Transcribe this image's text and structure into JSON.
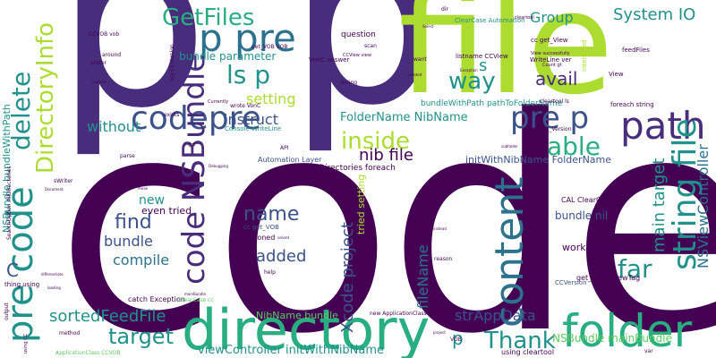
{
  "palette": {
    "deep_purple": "#440154",
    "indigo": "#472d7b",
    "blue": "#3b528b",
    "steel_blue": "#2c728e",
    "teal": "#21918c",
    "sea_green": "#28ae80",
    "green": "#5ec962",
    "yellow_green": "#addc30",
    "yellow": "#fde725"
  },
  "words": {
    "code_big": "code",
    "p_top_left": "p",
    "p_top_mid": "p",
    "file_big": "file",
    "directory": "directory",
    "folder": "folder",
    "p_pre": "p pre",
    "codepre": "codepre",
    "code_nsbundle": "code NSBundle",
    "getfiles": "GetFiles",
    "path": "path",
    "pre_p": "pre p",
    "content": "content",
    "string_file": "string file",
    "pre_code": "pre code",
    "delete": "delete",
    "directoryinfo": "DirectoryInfo",
    "inside": "inside",
    "able": "able",
    "ls_p": "ls p",
    "way": "way",
    "s": "s",
    "avail": "avail",
    "system_io": "System IO",
    "group": "Group",
    "name": "name",
    "find": "find",
    "target": "target",
    "thank": "Thank",
    "far": "far",
    "c": "C",
    "sortedfeedfile": "sortedFeedFile",
    "strappdata": "strAppData",
    "xcode_project": "Xcode project",
    "filename": "fileName",
    "main_target": "main target",
    "nsviewcontroller": "NSViewController",
    "nib_file": "nib file",
    "folder_nibname": "FolderName NibName",
    "instruct": "instruct",
    "setting": "setting",
    "without": "without",
    "bundle_parameter": "bundle parameter",
    "bundle": "bundle",
    "compile": "compile",
    "added": "added",
    "new": "new",
    "even_tried": "even tried",
    "nsbundle_mainbundle": "NSBundle mainBundle",
    "bundle_nil": "bundle nil",
    "work_neither": "work Neither",
    "init_nib_folder": "initWithNibName FolderName",
    "viewcontroller_init": "viewController initWithNibName",
    "nibname_bundle": "NibName bundle",
    "p_small": "p",
    "nsbundle_bundlewithpath": "NSBundle bundleWithPath",
    "tried_setting": "tried setting",
    "alldirectories": "AllDirectories foreach",
    "bundlewithpath": "bundleWithPath pathToFolderName",
    "automation_layer": "Automation Layer",
    "cc_get_vob": "cc get_VOB",
    "versioned": "versioned",
    "catch_exception": "catch Exception",
    "cal_clearcase": "CAL ClearCase",
    "get_view_viewtag": "get_View ViewTag",
    "ccversion": "CCVersion",
    "using_cleartool": "using cleartool",
    "clearcase_automation": "ClearCase Automation",
    "cc_get_view": "cc get_View",
    "listname_ccview": "listname CCView",
    "question": "question",
    "wrote_vonc": "wrote VonC",
    "vonc_answer": "VonC answer",
    "console_writeline": "Console WriteLine",
    "foreach_string": "foreach string",
    "cleartool_ls": "cleartool ls",
    "cc_get_version": "cc get_Version",
    "writeline_ver": "WriteLine ver",
    "feedfiles": "feedFiles",
    "view": "View",
    "interested": "interested",
    "ccvob_vob": "CCVOB vob",
    "around": "around",
    "prefer": "prefer",
    "capture": "capture",
    "scan": "scan",
    "listing": "listing",
    "want": "want",
    "exists": "exists",
    "parse": "parse",
    "swriter": "sWriter",
    "thing_using": "thing using",
    "output": "output",
    "method": "method",
    "applicationclass_ccvob": "ApplicationClass CCVOB",
    "new_applicationclass": "new ApplicationClass",
    "help": "help",
    "api": "API",
    "iclearcase_cc": "IClearCase cc",
    "reason": "reason",
    "vob": "VOB",
    "var": "var",
    "get_view_vob": "get_VOB VOB",
    "currently": "Currently",
    "ccview_view": "CCView view",
    "try_ccversion": "try CCVersion",
    "got": "got",
    "using_cc": "using CC",
    "searchoption_alldirectories": "SearchOption AllDirectories",
    "uploads": "uploads",
    "view_successfully": "View successfully",
    "count_gt": "Count gt",
    "exception": "Exception",
    "cleartool": "cleartool",
    "dir": "dir",
    "select": "Select",
    "created": "created",
    "debugging": "Debugging",
    "mainbundle": "mainBundle",
    "document": "Document",
    "subfolder": "subfolder",
    "differentiate": "differentiate",
    "loading": "loading",
    "outlook": "outlook",
    "solved": "solved",
    "project": "project",
    "instead": "instead",
    "mean": "mean"
  }
}
